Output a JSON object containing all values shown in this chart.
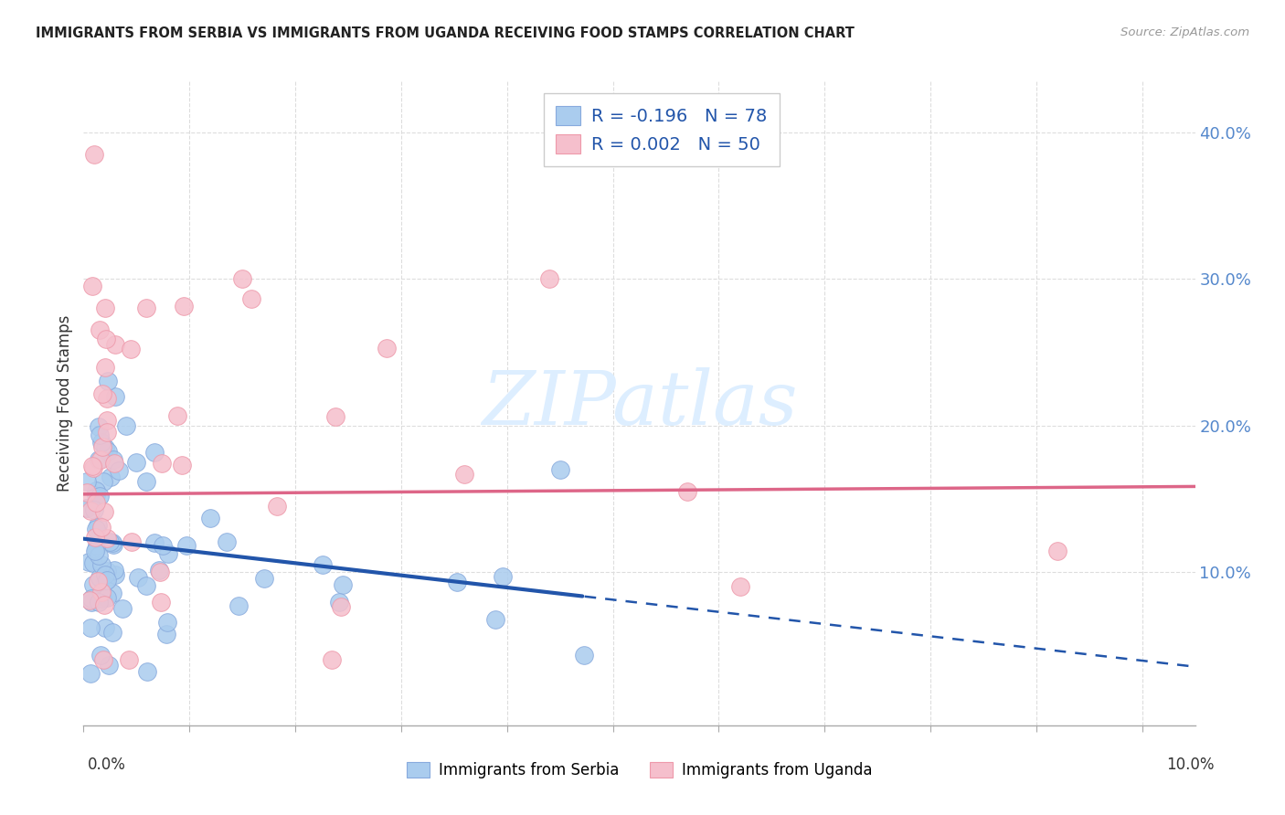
{
  "title": "IMMIGRANTS FROM SERBIA VS IMMIGRANTS FROM UGANDA RECEIVING FOOD STAMPS CORRELATION CHART",
  "source": "Source: ZipAtlas.com",
  "ylabel": "Receiving Food Stamps",
  "xlim": [
    0.0,
    0.105
  ],
  "ylim": [
    -0.005,
    0.435
  ],
  "right_yticks": [
    0.1,
    0.2,
    0.3,
    0.4
  ],
  "right_yticklabels": [
    "10.0%",
    "20.0%",
    "30.0%",
    "40.0%"
  ],
  "serbia_color": "#aaccee",
  "uganda_color": "#f5bfcc",
  "serbia_edge": "#88aadd",
  "uganda_edge": "#ee99aa",
  "trend_serbia_color": "#2255aa",
  "trend_uganda_color": "#dd6688",
  "grid_color": "#dddddd",
  "axis_color": "#aaaaaa",
  "text_color": "#333333",
  "right_tick_color": "#5588cc",
  "legend_color": "#2255aa",
  "serbia_R": "-0.196",
  "serbia_N": "78",
  "uganda_R": "0.002",
  "uganda_N": "50",
  "serbia_trend_y0": 0.118,
  "serbia_trend_y_end": 0.04,
  "serbia_trend_x_end": 0.055,
  "uganda_trend_y": 0.153,
  "watermark_color": "#ddeeff"
}
